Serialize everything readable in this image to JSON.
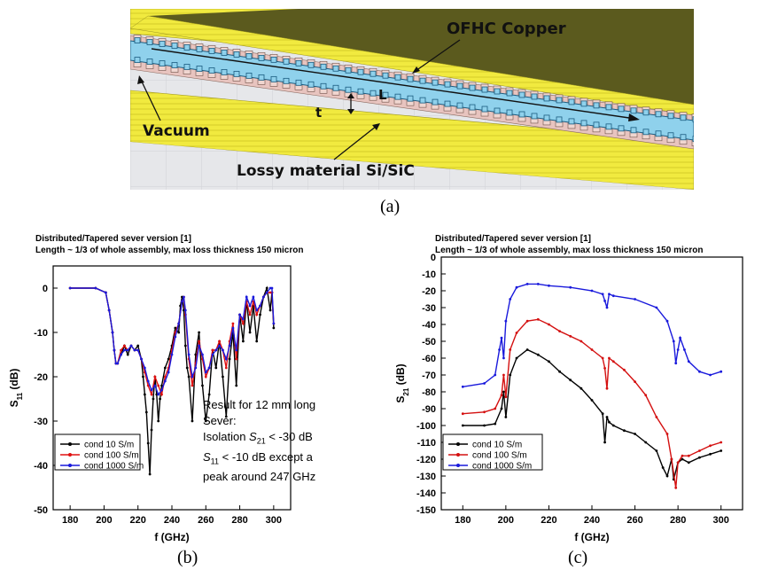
{
  "figure_a": {
    "caption": "(a)",
    "labels": {
      "copper": "OFHC Copper",
      "vacuum": "Vacuum",
      "lossy": "Lossy material Si/SiC",
      "L": "L",
      "t": "t"
    },
    "colors": {
      "yellow": "#f1ea3f",
      "copper": "#5b5a1e",
      "vacuum": "#8fd1ec",
      "lossy": "#e8c4bf",
      "background": "#e6e7ea"
    }
  },
  "figure_b": {
    "caption": "(b)",
    "title_line1": "Distributed/Tapered sever version [1]",
    "title_line2": "Length ~ 1/3 of whole assembly, max loss thickness 150 micron",
    "note": {
      "line1": "Result for 12 mm long",
      "line2": "Sever:",
      "line3_a": "Isolation ",
      "line3_S": "S",
      "line3_sub": "21",
      "line3_b": " < -30 dB",
      "line4_S": "S",
      "line4_sub": "11",
      "line4_b": " < -10 dB except a",
      "line5": "peak around 247 GHz"
    }
  },
  "figure_c": {
    "caption": "(c)",
    "title_line1": "Distributed/Tapered sever version [1]",
    "title_line2": "Length ~ 1/3 of whole assembly, max loss thickness 150 micron"
  },
  "chart_data": [
    {
      "type": "line",
      "title": "",
      "xlabel": "f (GHz)",
      "ylabel": "S11 (dB)",
      "xlim": [
        170,
        310
      ],
      "ylim": [
        -50,
        5
      ],
      "xticks": [
        180,
        200,
        220,
        240,
        260,
        280,
        300
      ],
      "yticks": [
        0,
        -10,
        -20,
        -30,
        -40,
        -50
      ],
      "legend_position": "bottom-left",
      "series": [
        {
          "name": "cond 10 S/m",
          "color": "#000000",
          "x": [
            180,
            195,
            201,
            203,
            205,
            206,
            207,
            208,
            210,
            212,
            214,
            216,
            218,
            220,
            222,
            223,
            224,
            225,
            226,
            227,
            228,
            229,
            230,
            231,
            232,
            233,
            234,
            236,
            238,
            240,
            242,
            244,
            245,
            246,
            247,
            248,
            249,
            250,
            252,
            254,
            256,
            258,
            260,
            262,
            264,
            266,
            268,
            270,
            272,
            274,
            276,
            278,
            280,
            282,
            284,
            286,
            288,
            290,
            292,
            294,
            296,
            298,
            299,
            300
          ],
          "y": [
            0,
            0,
            -1,
            -5,
            -10,
            -14,
            -17,
            -17,
            -15,
            -13,
            -15,
            -13,
            -14,
            -13,
            -16,
            -20,
            -24,
            -28,
            -35,
            -42,
            -32,
            -25,
            -20,
            -24,
            -30,
            -25,
            -22,
            -18,
            -16,
            -13,
            -9,
            -10,
            -4,
            -2,
            -5,
            -13,
            -18,
            -20,
            -30,
            -15,
            -10,
            -22,
            -30,
            -24,
            -14,
            -18,
            -12,
            -20,
            -29,
            -16,
            -10,
            -22,
            -6,
            -12,
            -3,
            -10,
            -4,
            -12,
            -6,
            -2,
            0,
            -5,
            -1,
            -9
          ]
        },
        {
          "name": "cond 100 S/m",
          "color": "#e01010",
          "x": [
            180,
            195,
            201,
            203,
            205,
            206,
            207,
            208,
            210,
            212,
            214,
            216,
            218,
            220,
            222,
            224,
            226,
            228,
            230,
            232,
            234,
            236,
            238,
            240,
            242,
            244,
            246,
            247,
            248,
            250,
            252,
            254,
            256,
            258,
            260,
            262,
            264,
            266,
            268,
            270,
            272,
            274,
            276,
            278,
            280,
            282,
            284,
            286,
            288,
            290,
            292,
            294,
            296,
            298,
            299,
            300
          ],
          "y": [
            0,
            0,
            -1,
            -5,
            -10,
            -14,
            -17,
            -17,
            -14,
            -13,
            -14,
            -13,
            -14,
            -14,
            -16,
            -19,
            -22,
            -24,
            -20,
            -22,
            -24,
            -20,
            -18,
            -14,
            -10,
            -8,
            -3,
            -2,
            -6,
            -16,
            -22,
            -17,
            -12,
            -16,
            -20,
            -18,
            -14,
            -14,
            -12,
            -14,
            -18,
            -12,
            -8,
            -16,
            -6,
            -8,
            -3,
            -6,
            -3,
            -6,
            -4,
            -2,
            -1,
            -1,
            -1,
            -8
          ]
        },
        {
          "name": "cond 1000 S/m",
          "color": "#1a1adc",
          "x": [
            180,
            195,
            201,
            203,
            205,
            206,
            207,
            208,
            210,
            212,
            214,
            216,
            218,
            220,
            222,
            224,
            226,
            228,
            230,
            232,
            234,
            236,
            238,
            240,
            242,
            244,
            246,
            247,
            248,
            250,
            252,
            254,
            256,
            258,
            260,
            262,
            264,
            266,
            268,
            270,
            272,
            274,
            276,
            278,
            280,
            282,
            284,
            286,
            288,
            290,
            292,
            294,
            296,
            298,
            299,
            300
          ],
          "y": [
            0,
            0,
            -1,
            -5,
            -10,
            -14,
            -17,
            -17,
            -15,
            -14,
            -14,
            -13,
            -14,
            -14,
            -16,
            -18,
            -21,
            -23,
            -22,
            -24,
            -23,
            -21,
            -19,
            -15,
            -11,
            -8,
            -3,
            -2,
            -5,
            -15,
            -20,
            -18,
            -13,
            -15,
            -19,
            -18,
            -15,
            -14,
            -13,
            -14,
            -16,
            -13,
            -9,
            -14,
            -6,
            -7,
            -2,
            -4,
            -2,
            -5,
            -4,
            -2,
            -1,
            0,
            0,
            -8
          ]
        }
      ]
    },
    {
      "type": "line",
      "title": "",
      "xlabel": "f (GHz)",
      "ylabel": "S21 (dB)",
      "xlim": [
        170,
        310
      ],
      "ylim": [
        -150,
        0
      ],
      "xticks": [
        180,
        200,
        220,
        240,
        260,
        280,
        300
      ],
      "yticks": [
        0,
        -10,
        -20,
        -30,
        -40,
        -50,
        -60,
        -70,
        -80,
        -90,
        -100,
        -110,
        -120,
        -130,
        -140,
        -150
      ],
      "legend_position": "bottom-left",
      "series": [
        {
          "name": "cond 10 S/m",
          "color": "#000000",
          "x": [
            180,
            190,
            195,
            198,
            199,
            200,
            202,
            205,
            210,
            215,
            220,
            225,
            230,
            235,
            240,
            245,
            246,
            247,
            248,
            250,
            255,
            260,
            265,
            270,
            273,
            275,
            277,
            278,
            280,
            282,
            285,
            290,
            295,
            300
          ],
          "y": [
            -100,
            -100,
            -99,
            -90,
            -80,
            -95,
            -70,
            -60,
            -55,
            -58,
            -62,
            -68,
            -73,
            -78,
            -85,
            -93,
            -110,
            -95,
            -98,
            -100,
            -103,
            -105,
            -110,
            -115,
            -125,
            -130,
            -120,
            -132,
            -122,
            -120,
            -122,
            -119,
            -117,
            -115
          ]
        },
        {
          "name": "cond 100 S/m",
          "color": "#d41010",
          "x": [
            180,
            190,
            195,
            198,
            199,
            200,
            202,
            205,
            210,
            215,
            220,
            225,
            230,
            235,
            240,
            245,
            246,
            247,
            248,
            250,
            255,
            260,
            265,
            270,
            275,
            277,
            279,
            280,
            282,
            285,
            290,
            295,
            300
          ],
          "y": [
            -93,
            -92,
            -90,
            -82,
            -70,
            -83,
            -55,
            -45,
            -38,
            -37,
            -40,
            -44,
            -47,
            -50,
            -55,
            -60,
            -66,
            -78,
            -60,
            -62,
            -67,
            -74,
            -82,
            -95,
            -105,
            -120,
            -137,
            -122,
            -118,
            -118,
            -115,
            -112,
            -110
          ]
        },
        {
          "name": "cond 1000 S/m",
          "color": "#1a1adc",
          "x": [
            180,
            190,
            195,
            197,
            198,
            199,
            200,
            202,
            205,
            210,
            215,
            220,
            230,
            240,
            245,
            246,
            247,
            248,
            250,
            260,
            270,
            275,
            278,
            279,
            280,
            281,
            283,
            285,
            290,
            295,
            300
          ],
          "y": [
            -77,
            -75,
            -70,
            -55,
            -48,
            -60,
            -38,
            -25,
            -18,
            -16,
            -16,
            -17,
            -18,
            -20,
            -22,
            -26,
            -30,
            -22,
            -23,
            -25,
            -30,
            -38,
            -50,
            -63,
            -55,
            -48,
            -55,
            -62,
            -68,
            -70,
            -68
          ]
        }
      ]
    }
  ]
}
